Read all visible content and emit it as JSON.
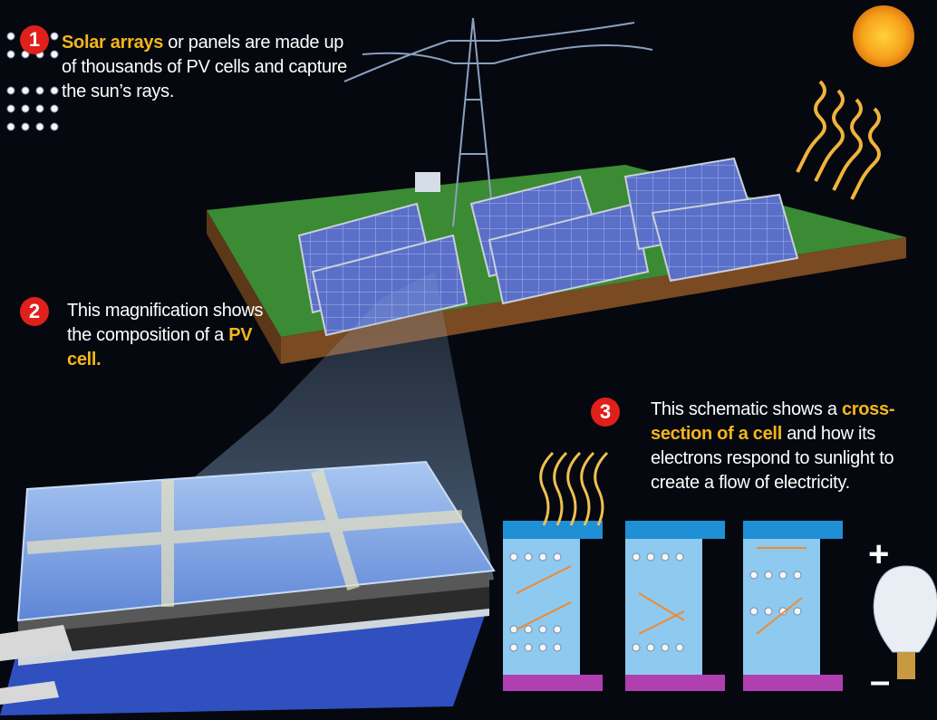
{
  "callouts": [
    {
      "number": "1",
      "segments": [
        {
          "text": "Solar arrays"
        },
        {
          "text": " or panels are made up of thousands of PV cells and capture the sun’s rays."
        }
      ]
    },
    {
      "number": "2",
      "segments": [
        {
          "text": "This magnification shows the composition of a "
        },
        {
          "text": "PV cell."
        }
      ]
    },
    {
      "number": "3",
      "segments": [
        {
          "text": "This schematic shows a "
        },
        {
          "text": "cross-section of a cell"
        },
        {
          "text": " and how its electrons respond to sunlight to create a flow of electricity."
        }
      ]
    }
  ],
  "terminals": {
    "positive": "+",
    "negative": "–"
  }
}
